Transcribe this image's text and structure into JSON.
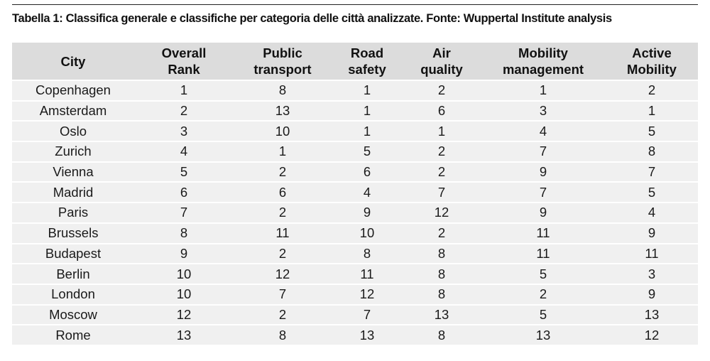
{
  "caption": "Tabella 1: Classifica generale e classifiche per categoria delle città analizzate. Fonte: Wuppertal Institute analysis",
  "headers": {
    "city": "City",
    "overall_rank": {
      "line1": "Overall",
      "line2": "Rank"
    },
    "public_transport": {
      "line1": "Public",
      "line2": "transport"
    },
    "road_safety": {
      "line1": "Road",
      "line2": "safety"
    },
    "air_quality": {
      "line1": "Air",
      "line2": "quality"
    },
    "mobility_management": {
      "line1": "Mobility",
      "line2": "management"
    },
    "active_mobility": {
      "line1": "Active",
      "line2": "Mobility"
    }
  },
  "rows": [
    {
      "city": "Copenhagen",
      "overall": "1",
      "public_transport": "8",
      "road_safety": "1",
      "air_quality": "2",
      "mobility_management": "1",
      "active_mobility": "2"
    },
    {
      "city": "Amsterdam",
      "overall": "2",
      "public_transport": "13",
      "road_safety": "1",
      "air_quality": "6",
      "mobility_management": "3",
      "active_mobility": "1"
    },
    {
      "city": "Oslo",
      "overall": "3",
      "public_transport": "10",
      "road_safety": "1",
      "air_quality": "1",
      "mobility_management": "4",
      "active_mobility": "5"
    },
    {
      "city": "Zurich",
      "overall": "4",
      "public_transport": "1",
      "road_safety": "5",
      "air_quality": "2",
      "mobility_management": "7",
      "active_mobility": "8"
    },
    {
      "city": "Vienna",
      "overall": "5",
      "public_transport": "2",
      "road_safety": "6",
      "air_quality": "2",
      "mobility_management": "9",
      "active_mobility": "7"
    },
    {
      "city": "Madrid",
      "overall": "6",
      "public_transport": "6",
      "road_safety": "4",
      "air_quality": "7",
      "mobility_management": "7",
      "active_mobility": "5"
    },
    {
      "city": "Paris",
      "overall": "7",
      "public_transport": "2",
      "road_safety": "9",
      "air_quality": "12",
      "mobility_management": "9",
      "active_mobility": "4"
    },
    {
      "city": "Brussels",
      "overall": "8",
      "public_transport": "11",
      "road_safety": "10",
      "air_quality": "2",
      "mobility_management": "11",
      "active_mobility": "9"
    },
    {
      "city": "Budapest",
      "overall": "9",
      "public_transport": "2",
      "road_safety": "8",
      "air_quality": "8",
      "mobility_management": "11",
      "active_mobility": "11"
    },
    {
      "city": "Berlin",
      "overall": "10",
      "public_transport": "12",
      "road_safety": "11",
      "air_quality": "8",
      "mobility_management": "5",
      "active_mobility": "3"
    },
    {
      "city": "London",
      "overall": "10",
      "public_transport": "7",
      "road_safety": "12",
      "air_quality": "8",
      "mobility_management": "2",
      "active_mobility": "9"
    },
    {
      "city": "Moscow",
      "overall": "12",
      "public_transport": "2",
      "road_safety": "7",
      "air_quality": "13",
      "mobility_management": "5",
      "active_mobility": "13"
    },
    {
      "city": "Rome",
      "overall": "13",
      "public_transport": "8",
      "road_safety": "13",
      "air_quality": "8",
      "mobility_management": "13",
      "active_mobility": "12"
    }
  ]
}
